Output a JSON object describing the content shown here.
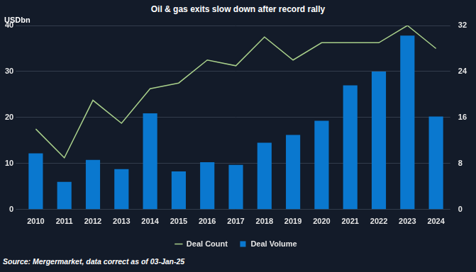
{
  "chart_data": {
    "type": "bar",
    "title": "Oil & gas exits slow down after record rally",
    "ylabel": "USDbn",
    "source": "Source: Mergermarket, data correct as of 03-Jan-25",
    "categories": [
      "2010",
      "2011",
      "2012",
      "2013",
      "2014",
      "2015",
      "2016",
      "2017",
      "2018",
      "2019",
      "2020",
      "2021",
      "2022",
      "2023",
      "2024"
    ],
    "series": [
      {
        "name": "Deal Volume",
        "type": "bar",
        "color": "#0a78cf",
        "values": [
          12.2,
          6.0,
          10.8,
          8.8,
          20.9,
          8.3,
          10.3,
          9.7,
          14.5,
          16.2,
          19.3,
          27.0,
          30.0,
          37.8,
          20.2
        ]
      },
      {
        "name": "Deal Count",
        "type": "line",
        "color": "#a8cf8a",
        "axis": "y2",
        "values": [
          14,
          9,
          19,
          15,
          21,
          22,
          26,
          25,
          30,
          26,
          29,
          29,
          29,
          32,
          28
        ]
      }
    ],
    "ylim": [
      0,
      40
    ],
    "yticks": [
      0,
      10,
      20,
      30,
      40
    ],
    "y2lim": [
      0,
      32
    ],
    "y2ticks": [
      0,
      8,
      16,
      24,
      32
    ],
    "grid": true,
    "legend": "bottom"
  }
}
